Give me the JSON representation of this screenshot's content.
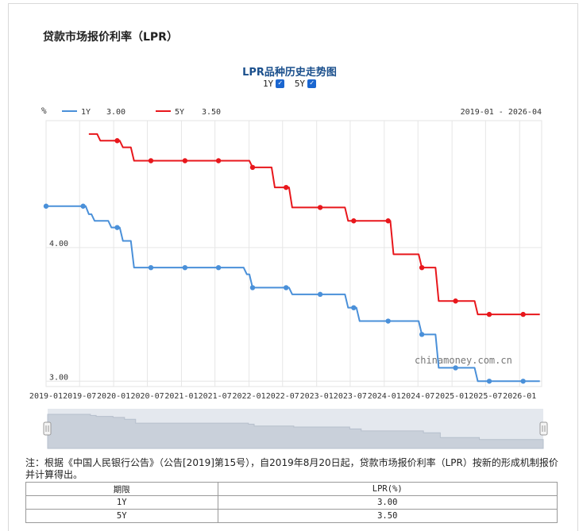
{
  "page": {
    "title": "贷款市场报价利率（LPR）"
  },
  "chart_header": {
    "title": "LPR品种历史走势图",
    "toggles": [
      {
        "label": "1Y",
        "checked": true
      },
      {
        "label": "5Y",
        "checked": true
      }
    ],
    "unit_label": "%",
    "date_range": "2019-01 - 2026-04",
    "watermark": "chinamoney.com.cn"
  },
  "chart_data": {
    "type": "line",
    "title": "LPR品种历史走势图",
    "ylabel": "%",
    "ylim": [
      2.96,
      4.95
    ],
    "xlim": [
      "2019-01-01",
      "2026-04-30"
    ],
    "y_ticks": [
      {
        "value": 3.0,
        "label": "3.00"
      },
      {
        "value": 4.0,
        "label": "4.00"
      }
    ],
    "x_ticks": [
      "2019-01",
      "2019-07",
      "2020-01",
      "2020-07",
      "2021-01",
      "2021-07",
      "2022-01",
      "2022-07",
      "2023-01",
      "2023-07",
      "2024-01",
      "2024-07",
      "2025-01",
      "2025-07",
      "2026-01"
    ],
    "grid": true,
    "legend": "top-left",
    "series": [
      {
        "name": "1Y",
        "latest": "3.00",
        "color": "#4a90d9",
        "step_points": [
          [
            "2019-01-01",
            4.31
          ],
          [
            "2019-08-20",
            4.25
          ],
          [
            "2019-09-20",
            4.2
          ],
          [
            "2019-10-21",
            4.2
          ],
          [
            "2019-12-20",
            4.15
          ],
          [
            "2020-01-20",
            4.15
          ],
          [
            "2020-02-20",
            4.05
          ],
          [
            "2020-03-20",
            4.05
          ],
          [
            "2020-04-20",
            3.85
          ],
          [
            "2020-07-20",
            3.85
          ],
          [
            "2021-01-20",
            3.85
          ],
          [
            "2021-07-20",
            3.85
          ],
          [
            "2021-12-20",
            3.8
          ],
          [
            "2022-01-20",
            3.7
          ],
          [
            "2022-07-20",
            3.7
          ],
          [
            "2022-08-22",
            3.65
          ],
          [
            "2023-01-20",
            3.65
          ],
          [
            "2023-06-20",
            3.55
          ],
          [
            "2023-07-20",
            3.55
          ],
          [
            "2023-08-21",
            3.45
          ],
          [
            "2024-01-22",
            3.45
          ],
          [
            "2024-07-22",
            3.35
          ],
          [
            "2024-08-20",
            3.35
          ],
          [
            "2024-10-21",
            3.1
          ],
          [
            "2025-01-20",
            3.1
          ],
          [
            "2025-05-20",
            3.0
          ],
          [
            "2025-07-21",
            3.0
          ],
          [
            "2026-01-20",
            3.0
          ],
          [
            "2026-04-20",
            3.0
          ]
        ],
        "markers": [
          "2019-01-01",
          "2019-07-20",
          "2020-01-20",
          "2020-07-20",
          "2021-01-20",
          "2021-07-20",
          "2022-01-20",
          "2022-07-20",
          "2023-01-20",
          "2023-07-20",
          "2024-01-22",
          "2024-07-22",
          "2025-01-20",
          "2025-07-21",
          "2026-01-20"
        ]
      },
      {
        "name": "5Y",
        "latest": "3.50",
        "color": "#e8171c",
        "step_points": [
          [
            "2019-08-20",
            4.85
          ],
          [
            "2019-10-21",
            4.8
          ],
          [
            "2020-01-20",
            4.8
          ],
          [
            "2020-02-20",
            4.75
          ],
          [
            "2020-04-20",
            4.65
          ],
          [
            "2020-07-20",
            4.65
          ],
          [
            "2021-01-20",
            4.65
          ],
          [
            "2021-07-20",
            4.65
          ],
          [
            "2022-01-20",
            4.6
          ],
          [
            "2022-05-20",
            4.45
          ],
          [
            "2022-07-20",
            4.45
          ],
          [
            "2022-08-22",
            4.3
          ],
          [
            "2023-01-20",
            4.3
          ],
          [
            "2023-06-20",
            4.2
          ],
          [
            "2023-07-20",
            4.2
          ],
          [
            "2024-01-22",
            4.2
          ],
          [
            "2024-02-20",
            3.95
          ],
          [
            "2024-07-22",
            3.85
          ],
          [
            "2024-10-21",
            3.6
          ],
          [
            "2025-01-20",
            3.6
          ],
          [
            "2025-05-20",
            3.5
          ],
          [
            "2025-07-21",
            3.5
          ],
          [
            "2026-01-20",
            3.5
          ],
          [
            "2026-04-20",
            3.5
          ]
        ],
        "markers": [
          "2020-01-20",
          "2020-07-20",
          "2021-01-20",
          "2021-07-20",
          "2022-01-20",
          "2022-07-20",
          "2023-01-20",
          "2023-07-20",
          "2024-01-22",
          "2024-07-22",
          "2025-01-20",
          "2025-07-21",
          "2026-01-20"
        ]
      }
    ]
  },
  "note": "注：根据《中国人民银行公告》（公告[2019]第15号），自2019年8月20日起，贷款市场报价利率（LPR）按新的形成机制报价并计算得出。",
  "table": {
    "headers": [
      "期限",
      "LPR(%)"
    ],
    "rows": [
      [
        "1Y",
        "3.00"
      ],
      [
        "5Y",
        "3.50"
      ]
    ]
  }
}
